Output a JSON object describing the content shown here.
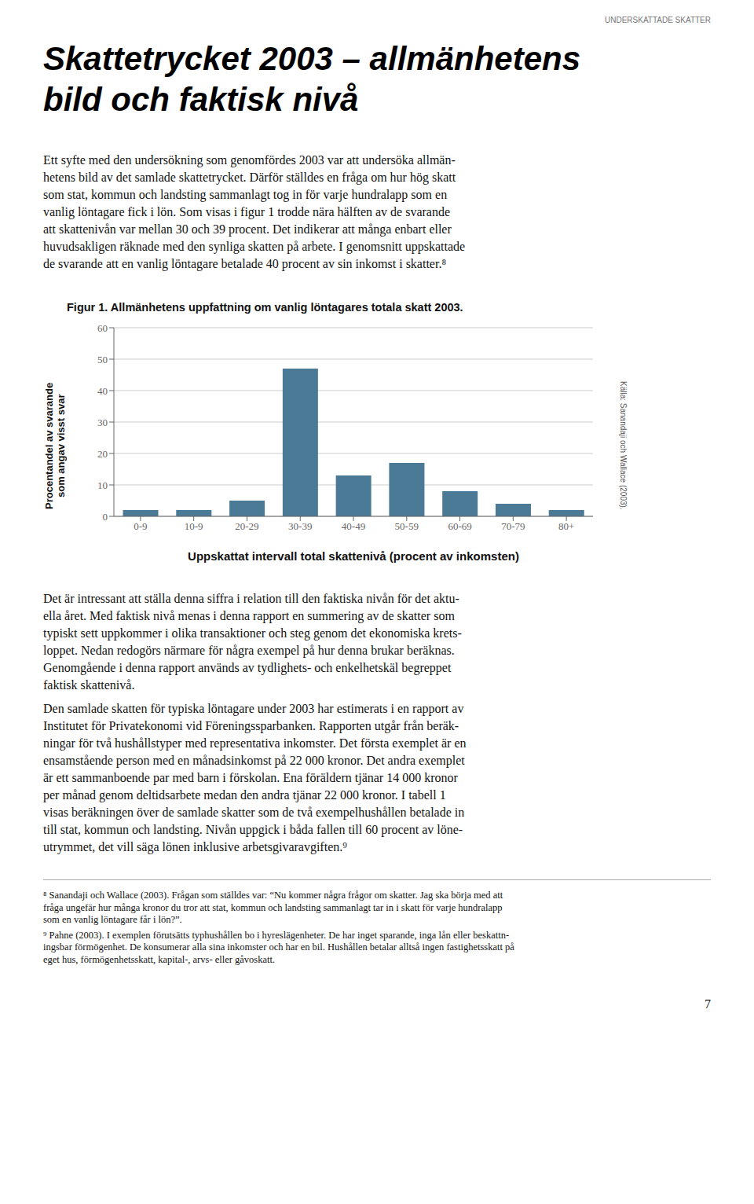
{
  "header": "UNDERSKATTADE SKATTER",
  "page_title": [
    "Skattetrycket 2003 – allmänhetens",
    "bild och faktisk nivå"
  ],
  "body_before_chart": [
    "Ett syfte med den undersökning som genomfördes 2003 var att undersöka allmän-",
    "hetens bild av det samlade skattetrycket. Därför ställdes en fråga om hur hög skatt",
    "som stat, kommun och landsting sammanlagt tog in för varje hundralapp som en",
    "vanlig löntagare fick i lön. Som visas i figur 1 trodde nära hälften av de svarande",
    "att skattenivån var mellan 30 och 39 procent. Det indikerar att många enbart eller",
    "huvudsakligen räknade med den synliga skatten på arbete. I genomsnitt uppskattade",
    "de svarande att en vanlig löntagare betalade 40 procent av sin inkomst i skatter.⁸"
  ],
  "body_after_chart": [
    [
      "Det är intressant att ställa denna siffra i relation till den faktiska nivån för det aktu-",
      "ella året. Med faktisk nivå menas i denna rapport en summering av de skatter som",
      "typiskt sett uppkommer i olika transaktioner och steg genom det ekonomiska krets-",
      "loppet. Nedan redogörs närmare för några exempel på hur denna brukar beräknas.",
      "Genomgående i denna rapport används av tydlighets- och enkelhetskäl begreppet",
      "faktisk skattenivå."
    ],
    [
      "Den samlade skatten för typiska löntagare under 2003 har estimerats i en rapport av",
      "Institutet för Privatekonomi vid Föreningssparbanken. Rapporten utgår från beräk-",
      "ningar för två hushållstyper med representativa inkomster. Det första exemplet är en",
      "ensamstående person med en månadsinkomst på 22 000 kronor. Det andra exemplet",
      "är ett sammanboende par med barn i förskolan. Ena föräldern tjänar 14 000 kronor",
      "per månad genom deltidsarbete medan den andra tjänar 22 000 kronor. I tabell 1",
      "visas beräkningen över de samlade skatter som de två exempelhushållen betalade in",
      "till stat, kommun och landsting. Nivån uppgick i båda fallen till 60 procent av löne-",
      "utrymmet, det vill säga lönen inklusive arbetsgivaravgiften.⁹"
    ]
  ],
  "footnotes": [
    [
      "⁸  Sanandaji och Wallace (2003). Frågan som ställdes var: “Nu kommer några frågor om skatter. Jag ska börja med att",
      "fråga ungefär hur många kronor du tror att stat, kommun och landsting sammanlagt tar in i skatt för varje hundralapp",
      "som en vanlig löntagare får i lön?”."
    ],
    [
      "⁹  Pahne (2003). I exemplen förutsätts typhushållen bo i hyreslägenheter. De har inget sparande, inga lån eller beskattn-",
      "ingsbar förmögenhet. De konsumerar alla sina inkomster och har en bil. Hushållen betalar alltså ingen fastighetsskatt på",
      "eget hus, förmögenhetsskatt, kapital-, arvs- eller gåvoskatt."
    ]
  ],
  "page_number": "7",
  "chart_data": {
    "type": "bar",
    "title": "Figur 1. Allmänhetens uppfattning om vanlig löntagares totala skatt 2003.",
    "ylabel": "Procentandel av svarande\nsom angav visst svar",
    "xlabel": "Uppskattat intervall total skattenivå (procent av inkomsten)",
    "source": "Källa: Sanandaji och Wallace (2003).",
    "categories": [
      "0-9",
      "10-9",
      "20-29",
      "30-39",
      "40-49",
      "50-59",
      "60-69",
      "70-79",
      "80+"
    ],
    "values": [
      2,
      2,
      5,
      47,
      13,
      17,
      8,
      4,
      2
    ],
    "color": "#4a7a96",
    "ylim": [
      0,
      60
    ],
    "yticks": [
      0,
      10,
      20,
      30,
      40,
      50,
      60
    ],
    "grid": true
  }
}
